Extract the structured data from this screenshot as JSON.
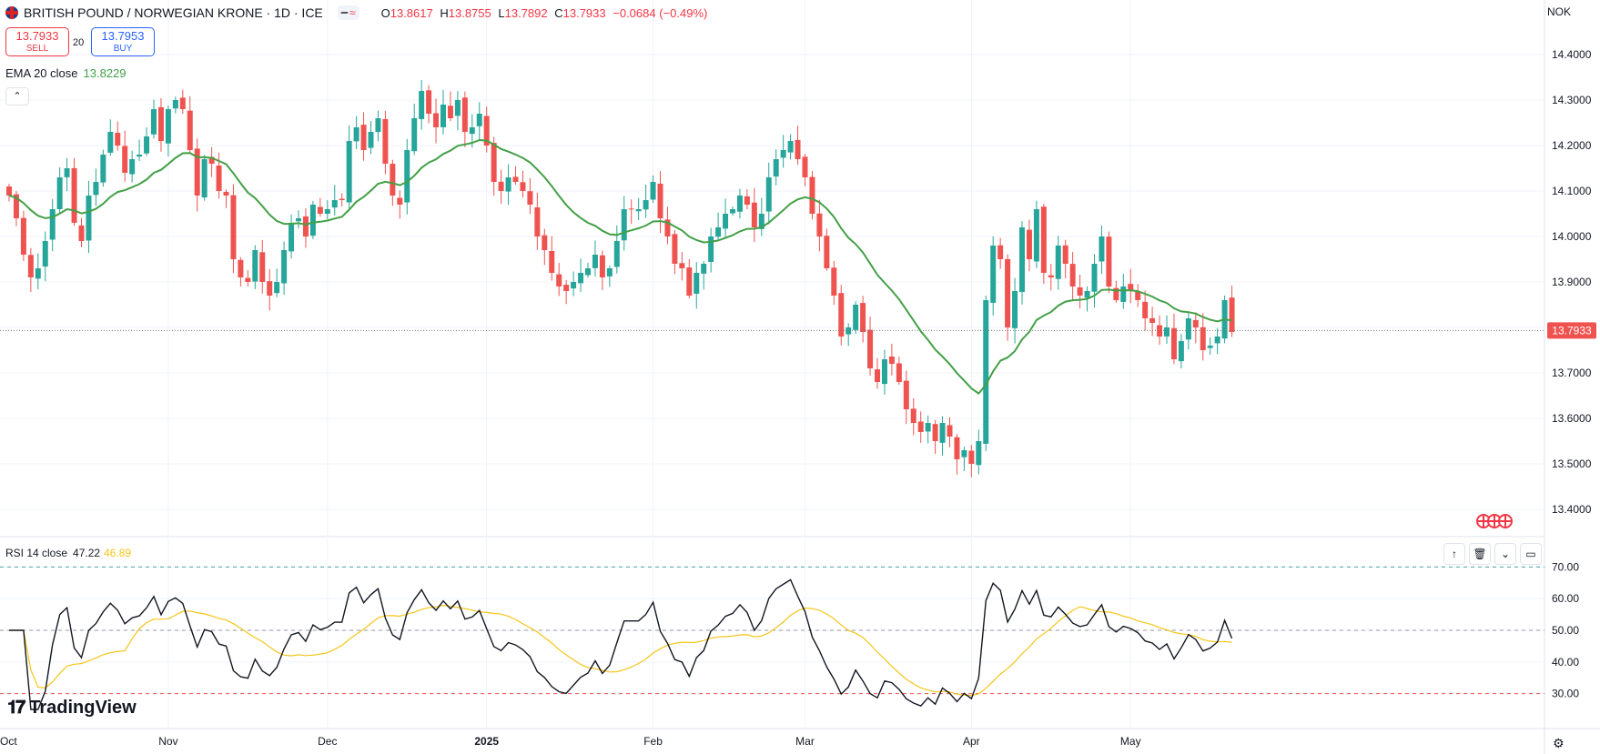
{
  "symbol": {
    "title": "BRITISH POUND / NORWEGIAN KRONE · 1D · ICE",
    "ohlc": [
      {
        "k": "O",
        "v": "13.8617"
      },
      {
        "k": "H",
        "v": "13.8755"
      },
      {
        "k": "L",
        "v": "13.7892"
      },
      {
        "k": "C",
        "v": "13.7933"
      }
    ],
    "change": "−0.0684 (−0.49%)"
  },
  "trade": {
    "sell_price": "13.7933",
    "sell_label": "SELL",
    "quantity": "20",
    "buy_price": "13.7953",
    "buy_label": "BUY"
  },
  "ema": {
    "label": "EMA 20 close",
    "value": "13.8229"
  },
  "rsi": {
    "label": "RSI 14 close",
    "value": "47.22",
    "ma_value": "46.89"
  },
  "currency_label": "NOK",
  "last_price_tag": "13.7933",
  "brand": "TradingView",
  "colors": {
    "up": "#26a69a",
    "down": "#ef5350",
    "ema": "#43a047",
    "rsi": "#131722",
    "rsi_ma": "#f5c518",
    "grid": "#f0f3fa"
  },
  "chart_data": [
    {
      "type": "candlestick",
      "title": "BRITISH POUND / NORWEGIAN KRONE · 1D · ICE",
      "ylim": [
        13.36,
        14.44
      ],
      "y_ticks": [
        "14.4000",
        "14.3000",
        "14.2000",
        "14.1000",
        "14.0000",
        "13.9000",
        "13.8000",
        "13.7000",
        "13.6000",
        "13.5000",
        "13.4000"
      ],
      "x_tick_labels": [
        "Oct",
        "Nov",
        "Dec",
        "2025",
        "Feb",
        "Mar",
        "Apr",
        "May"
      ],
      "x_tick_index": [
        -2,
        22,
        44,
        66,
        89,
        110,
        133,
        155
      ],
      "closes": [
        14.09,
        14.04,
        13.96,
        13.91,
        13.93,
        13.99,
        14.06,
        14.13,
        14.15,
        14.03,
        13.99,
        14.09,
        14.12,
        14.18,
        14.23,
        14.2,
        14.14,
        14.17,
        14.18,
        14.22,
        14.28,
        14.21,
        14.28,
        14.3,
        14.28,
        14.19,
        14.09,
        14.17,
        14.16,
        14.1,
        14.09,
        13.95,
        13.91,
        13.9,
        13.97,
        13.9,
        13.87,
        13.9,
        13.97,
        14.03,
        14.04,
        14.0,
        14.07,
        14.05,
        14.06,
        14.08,
        14.08,
        14.21,
        14.24,
        14.19,
        14.23,
        14.26,
        14.16,
        14.09,
        14.07,
        14.19,
        14.26,
        14.32,
        14.27,
        14.24,
        14.29,
        14.26,
        14.3,
        14.23,
        14.24,
        14.27,
        14.2,
        14.12,
        14.1,
        14.13,
        14.12,
        14.1,
        14.07,
        14.0,
        13.97,
        13.92,
        13.89,
        13.88,
        13.9,
        13.92,
        13.93,
        13.96,
        13.91,
        13.93,
        13.99,
        14.06,
        14.06,
        14.06,
        14.08,
        14.12,
        14.04,
        14.0,
        13.94,
        13.93,
        13.87,
        13.92,
        13.94,
        14.0,
        14.02,
        14.05,
        14.06,
        14.09,
        14.07,
        14.02,
        14.05,
        14.13,
        14.17,
        14.19,
        14.21,
        14.17,
        14.13,
        14.05,
        14.0,
        13.93,
        13.87,
        13.78,
        13.8,
        13.85,
        13.79,
        13.71,
        13.68,
        13.73,
        13.72,
        13.68,
        13.62,
        13.59,
        13.57,
        13.59,
        13.55,
        13.59,
        13.56,
        13.51,
        13.53,
        13.5,
        13.55,
        13.86,
        13.98,
        13.95,
        13.8,
        13.88,
        14.02,
        13.95,
        14.06,
        13.92,
        13.91,
        13.98,
        13.94,
        13.89,
        13.87,
        13.88,
        13.94,
        14.0,
        13.89,
        13.86,
        13.89,
        13.88,
        13.86,
        13.82,
        13.81,
        13.78,
        13.8,
        13.73,
        13.77,
        13.82,
        13.8,
        13.75,
        13.76,
        13.78,
        13.86,
        13.79
      ]
    },
    {
      "type": "line",
      "title": "RSI 14 close",
      "ylim": [
        25,
        75
      ],
      "y_ticks": [
        "70.00",
        "60.00",
        "50.00",
        "40.00",
        "30.00"
      ],
      "levels": [
        70,
        50,
        30
      ]
    }
  ]
}
